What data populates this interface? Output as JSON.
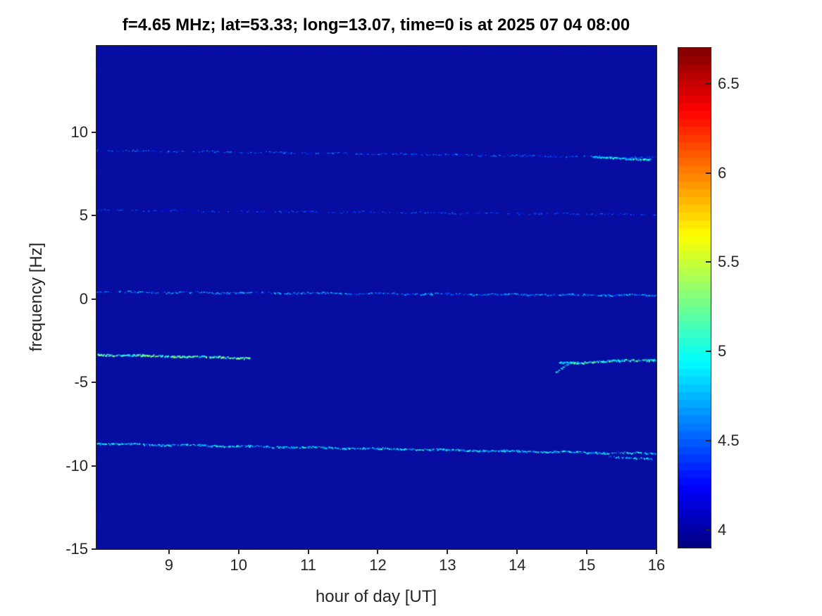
{
  "chart_data": {
    "type": "heatmap",
    "title": "f=4.65 MHz;  lat=53.33; long=13.07, time=0 is at 2025 07 04 08:00",
    "xlabel": "hour of day [UT]",
    "ylabel": "frequency [Hz]",
    "xlim": [
      7.96,
      16
    ],
    "ylim": [
      -15,
      15.2
    ],
    "x_ticks": [
      9,
      10,
      11,
      12,
      13,
      14,
      15,
      16
    ],
    "y_ticks": [
      -15,
      -10,
      -5,
      0,
      5,
      10
    ],
    "grid": false,
    "colorbar": {
      "colormap": "jet",
      "min": 3.9,
      "max": 6.7,
      "ticks": [
        4,
        4.5,
        5,
        5.5,
        6,
        6.5
      ]
    },
    "background_value": 3.95,
    "parameters": {
      "sounding_frequency": "4.65 MHz",
      "lat": "53.33",
      "long": "13.07",
      "time_zero": "2025 07 04 08:00"
    },
    "doppler_traces": [
      {
        "name": "upper-faint-line",
        "x": [
          7.96,
          16
        ],
        "y": [
          8.95,
          8.5
        ],
        "density": [
          0.42,
          0.5
        ],
        "value": [
          4.25,
          0.5
        ],
        "thickness": 1
      },
      {
        "name": "upper-line-bright-blob",
        "x": [
          15.05,
          15.9
        ],
        "y": [
          8.55,
          8.4
        ],
        "density": [
          0.85,
          0.85
        ],
        "value": [
          4.55,
          0.7
        ],
        "thickness": 2
      },
      {
        "name": "mid-faint-line",
        "x": [
          7.96,
          16
        ],
        "y": [
          5.35,
          5.1
        ],
        "density": [
          0.38,
          0.45
        ],
        "value": [
          4.2,
          0.45
        ],
        "thickness": 1
      },
      {
        "name": "zero-line",
        "x": [
          7.96,
          16
        ],
        "y": [
          0.45,
          0.25
        ],
        "density": [
          0.55,
          0.8
        ],
        "value": [
          4.3,
          0.6
        ],
        "thickness": 1.3
      },
      {
        "name": "minus3-line-left",
        "x": [
          7.96,
          10.15
        ],
        "y": [
          -3.3,
          -3.5
        ],
        "density": [
          0.95,
          0.9
        ],
        "value": [
          4.7,
          0.8
        ],
        "thickness": 2
      },
      {
        "name": "minus3-hook",
        "x": [
          14.55,
          14.75
        ],
        "y": [
          -4.35,
          -3.8
        ],
        "density": [
          0.8,
          0.8
        ],
        "value": [
          4.5,
          0.6
        ],
        "thickness": 1.5
      },
      {
        "name": "minus3-line-right",
        "x": [
          14.6,
          16
        ],
        "y": [
          -3.8,
          -3.6
        ],
        "density": [
          0.9,
          0.9
        ],
        "value": [
          4.6,
          0.8
        ],
        "thickness": 2
      },
      {
        "name": "minus9-line",
        "x": [
          7.96,
          16
        ],
        "y": [
          -8.65,
          -9.25
        ],
        "density": [
          0.75,
          0.85
        ],
        "value": [
          4.45,
          0.7
        ],
        "thickness": 1.6
      },
      {
        "name": "minus9-scatter-blob",
        "x": [
          15.3,
          15.95
        ],
        "y": [
          -9.4,
          -9.6
        ],
        "density": [
          0.5,
          0.5
        ],
        "value": [
          4.5,
          0.6
        ],
        "thickness": 1.5
      }
    ]
  }
}
